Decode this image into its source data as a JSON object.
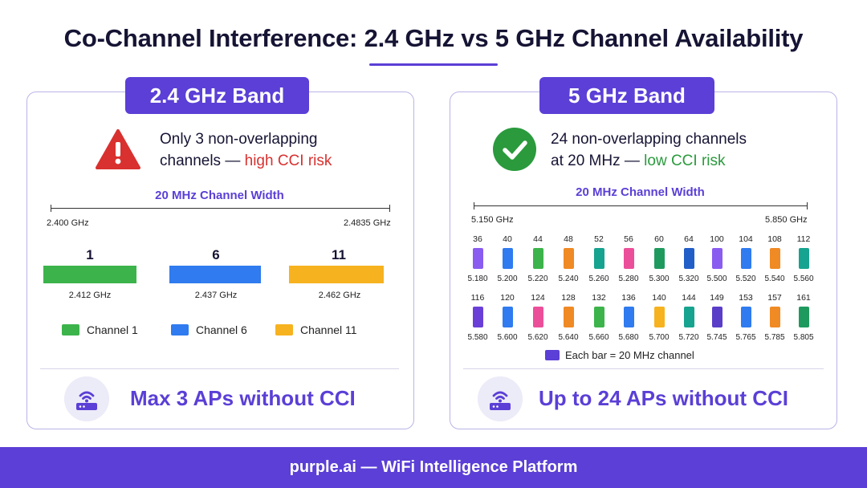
{
  "title": "Co-Channel Interference: 2.4 GHz vs 5 GHz Channel Availability",
  "colors": {
    "accent": "#5b3fd6",
    "risk_high": "#d8312f",
    "risk_low": "#2a9a3d"
  },
  "band24": {
    "badge": "2.4 GHz Band",
    "status_icon": "warning-triangle-icon",
    "status_line1": "Only 3 non-overlapping",
    "status_line2": "channels — ",
    "risk": "high CCI risk",
    "width_label": "20 MHz Channel Width",
    "freq_start": "2.400 GHz",
    "freq_end": "2.4835 GHz",
    "channels": [
      {
        "num": "1",
        "freq": "2.412 GHz",
        "color": "#3cb44b"
      },
      {
        "num": "6",
        "freq": "2.437 GHz",
        "color": "#2f7bef"
      },
      {
        "num": "11",
        "freq": "2.462 GHz",
        "color": "#f7b21f"
      }
    ],
    "legend": [
      {
        "label": "Channel 1",
        "color": "#3cb44b"
      },
      {
        "label": "Channel 6",
        "color": "#2f7bef"
      },
      {
        "label": "Channel 11",
        "color": "#f7b21f"
      }
    ],
    "ap_icon": "router-icon",
    "summary": "Max 3 APs without CCI"
  },
  "band5": {
    "badge": "5 GHz Band",
    "status_icon": "check-circle-icon",
    "status_line1": "24 non-overlapping channels",
    "status_line2": "at 20 MHz — ",
    "risk": "low CCI risk",
    "width_label": "20 MHz Channel Width",
    "freq_start": "5.150 GHz",
    "freq_end": "5.850 GHz",
    "rows": [
      [
        {
          "num": "36",
          "freq": "5.180",
          "color": "#8a5cf0"
        },
        {
          "num": "40",
          "freq": "5.200",
          "color": "#2f7bef"
        },
        {
          "num": "44",
          "freq": "5.220",
          "color": "#3cb44b"
        },
        {
          "num": "48",
          "freq": "5.240",
          "color": "#f08a24"
        },
        {
          "num": "52",
          "freq": "5.260",
          "color": "#16a38f"
        },
        {
          "num": "56",
          "freq": "5.280",
          "color": "#ec4f9a"
        },
        {
          "num": "60",
          "freq": "5.300",
          "color": "#1f9a5e"
        },
        {
          "num": "64",
          "freq": "5.320",
          "color": "#225ec8"
        },
        {
          "num": "100",
          "freq": "5.500",
          "color": "#8a5cf0"
        },
        {
          "num": "104",
          "freq": "5.520",
          "color": "#2f7bef"
        },
        {
          "num": "108",
          "freq": "5.540",
          "color": "#f08a24"
        },
        {
          "num": "112",
          "freq": "5.560",
          "color": "#16a38f"
        }
      ],
      [
        {
          "num": "116",
          "freq": "5.580",
          "color": "#6a3fd8"
        },
        {
          "num": "120",
          "freq": "5.600",
          "color": "#2f7bef"
        },
        {
          "num": "124",
          "freq": "5.620",
          "color": "#ec4f9a"
        },
        {
          "num": "128",
          "freq": "5.640",
          "color": "#f08a24"
        },
        {
          "num": "132",
          "freq": "5.660",
          "color": "#3cb44b"
        },
        {
          "num": "136",
          "freq": "5.680",
          "color": "#2f7bef"
        },
        {
          "num": "140",
          "freq": "5.700",
          "color": "#f7b21f"
        },
        {
          "num": "144",
          "freq": "5.720",
          "color": "#16a38f"
        },
        {
          "num": "149",
          "freq": "5.745",
          "color": "#5a3ec8"
        },
        {
          "num": "153",
          "freq": "5.765",
          "color": "#2f7bef"
        },
        {
          "num": "157",
          "freq": "5.785",
          "color": "#f08a24"
        },
        {
          "num": "161",
          "freq": "5.805",
          "color": "#1f9a5e"
        }
      ]
    ],
    "legend_label": "Each bar = 20 MHz channel",
    "legend_color": "#5b3fd6",
    "ap_icon": "router-icon",
    "summary": "Up to 24 APs without CCI"
  },
  "footer": "purple.ai — WiFi Intelligence Platform"
}
